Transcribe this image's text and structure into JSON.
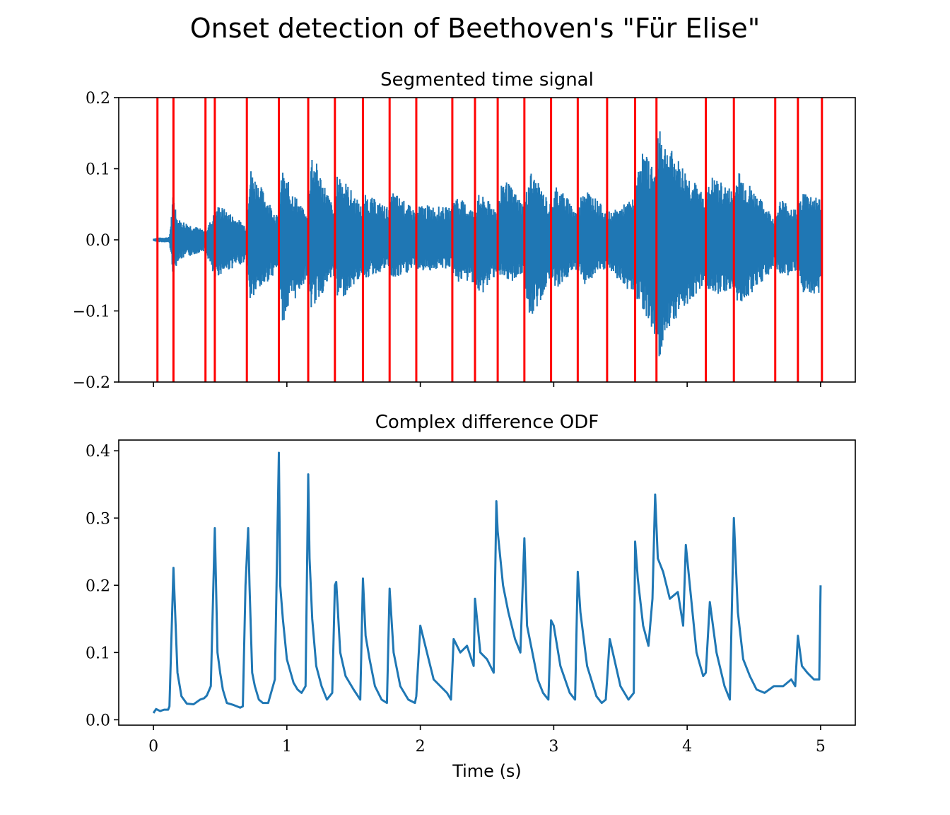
{
  "title": "Onset detection of Beethoven's \"Für Elise\"",
  "colors": {
    "signal": "#1f77b4",
    "onset": "#ff0000",
    "axes": "#000000"
  },
  "chart_data": [
    {
      "type": "line",
      "title": "Segmented time signal",
      "xlabel": "",
      "ylabel": "",
      "xlim": [
        -0.26,
        5.26
      ],
      "ylim": [
        -0.2,
        0.2
      ],
      "xticks": [
        0,
        1,
        2,
        3,
        4,
        5
      ],
      "xtick_labels_visible": false,
      "yticks": [
        -0.2,
        -0.1,
        0.0,
        0.1,
        0.2
      ],
      "ytick_labels": [
        "−0.2",
        "−0.1",
        "0.0",
        "0.1",
        "0.2"
      ],
      "grid": false,
      "onsets": [
        0.03,
        0.15,
        0.39,
        0.46,
        0.7,
        0.94,
        1.16,
        1.36,
        1.57,
        1.77,
        1.97,
        2.24,
        2.41,
        2.58,
        2.78,
        2.98,
        3.18,
        3.4,
        3.61,
        3.77,
        4.14,
        4.35,
        4.66,
        4.83,
        5.01
      ],
      "envelope": {
        "x": [
          0.0,
          0.03,
          0.12,
          0.15,
          0.18,
          0.39,
          0.46,
          0.49,
          0.7,
          0.72,
          0.94,
          0.96,
          1.16,
          1.18,
          1.36,
          1.38,
          1.57,
          1.59,
          1.77,
          1.79,
          1.97,
          2.0,
          2.24,
          2.26,
          2.41,
          2.44,
          2.58,
          2.62,
          2.78,
          2.82,
          2.98,
          3.02,
          3.18,
          3.22,
          3.4,
          3.44,
          3.61,
          3.65,
          3.77,
          3.79,
          3.83,
          4.14,
          4.18,
          4.35,
          4.38,
          4.66,
          4.7,
          4.83,
          4.86,
          5.0
        ],
        "upper": [
          0.002,
          0.003,
          0.004,
          0.07,
          0.03,
          0.013,
          0.04,
          0.05,
          0.02,
          0.105,
          0.03,
          0.1,
          0.03,
          0.13,
          0.04,
          0.1,
          0.045,
          0.065,
          0.045,
          0.07,
          0.04,
          0.05,
          0.045,
          0.065,
          0.04,
          0.065,
          0.045,
          0.09,
          0.05,
          0.1,
          0.05,
          0.08,
          0.04,
          0.08,
          0.04,
          0.04,
          0.06,
          0.13,
          0.1,
          0.18,
          0.14,
          0.06,
          0.09,
          0.07,
          0.1,
          0.03,
          0.06,
          0.04,
          0.07,
          0.06
        ],
        "lower": [
          -0.002,
          -0.003,
          -0.004,
          -0.055,
          -0.03,
          -0.015,
          -0.06,
          -0.05,
          -0.03,
          -0.09,
          -0.04,
          -0.12,
          -0.05,
          -0.1,
          -0.05,
          -0.09,
          -0.05,
          -0.055,
          -0.04,
          -0.06,
          -0.04,
          -0.045,
          -0.04,
          -0.06,
          -0.06,
          -0.085,
          -0.045,
          -0.065,
          -0.05,
          -0.125,
          -0.05,
          -0.07,
          -0.04,
          -0.065,
          -0.04,
          -0.05,
          -0.08,
          -0.09,
          -0.14,
          -0.185,
          -0.13,
          -0.06,
          -0.08,
          -0.07,
          -0.095,
          -0.04,
          -0.05,
          -0.05,
          -0.08,
          -0.075
        ]
      }
    },
    {
      "type": "line",
      "title": "Complex difference ODF",
      "xlabel": "Time (s)",
      "ylabel": "",
      "xlim": [
        -0.26,
        5.26
      ],
      "ylim": [
        -0.008,
        0.416
      ],
      "xticks": [
        0,
        1,
        2,
        3,
        4,
        5
      ],
      "xtick_labels": [
        "0",
        "1",
        "2",
        "3",
        "4",
        "5"
      ],
      "yticks": [
        0.0,
        0.1,
        0.2,
        0.3,
        0.4
      ],
      "ytick_labels": [
        "0.0",
        "0.1",
        "0.2",
        "0.3",
        "0.4"
      ],
      "grid": false,
      "series": [
        {
          "x": [
            0.0,
            0.02,
            0.05,
            0.08,
            0.11,
            0.12,
            0.15,
            0.18,
            0.21,
            0.25,
            0.3,
            0.35,
            0.38,
            0.4,
            0.43,
            0.46,
            0.48,
            0.5,
            0.52,
            0.55,
            0.6,
            0.65,
            0.67,
            0.69,
            0.71,
            0.72,
            0.74,
            0.76,
            0.79,
            0.82,
            0.86,
            0.91,
            0.94,
            0.95,
            0.97,
            1.0,
            1.05,
            1.08,
            1.11,
            1.14,
            1.16,
            1.17,
            1.19,
            1.22,
            1.26,
            1.3,
            1.34,
            1.36,
            1.37,
            1.4,
            1.44,
            1.5,
            1.55,
            1.57,
            1.59,
            1.62,
            1.66,
            1.71,
            1.75,
            1.77,
            1.8,
            1.85,
            1.91,
            1.96,
            1.97,
            2.0,
            2.05,
            2.1,
            2.15,
            2.2,
            2.23,
            2.25,
            2.3,
            2.35,
            2.4,
            2.41,
            2.45,
            2.5,
            2.55,
            2.57,
            2.58,
            2.62,
            2.66,
            2.71,
            2.75,
            2.78,
            2.8,
            2.84,
            2.88,
            2.92,
            2.96,
            2.98,
            3.0,
            3.05,
            3.12,
            3.16,
            3.18,
            3.2,
            3.25,
            3.32,
            3.36,
            3.39,
            3.42,
            3.5,
            3.56,
            3.6,
            3.61,
            3.63,
            3.67,
            3.71,
            3.74,
            3.76,
            3.78,
            3.82,
            3.87,
            3.93,
            3.97,
            3.99,
            4.02,
            4.07,
            4.12,
            4.14,
            4.17,
            4.22,
            4.28,
            4.32,
            4.35,
            4.38,
            4.42,
            4.47,
            4.52,
            4.58,
            4.65,
            4.72,
            4.78,
            4.81,
            4.83,
            4.86,
            4.9,
            4.95,
            4.99,
            5.0
          ],
          "values": [
            0.01,
            0.016,
            0.013,
            0.015,
            0.015,
            0.02,
            0.226,
            0.07,
            0.035,
            0.024,
            0.023,
            0.03,
            0.032,
            0.036,
            0.05,
            0.285,
            0.1,
            0.07,
            0.045,
            0.025,
            0.022,
            0.018,
            0.02,
            0.2,
            0.285,
            0.2,
            0.07,
            0.05,
            0.03,
            0.025,
            0.025,
            0.06,
            0.397,
            0.2,
            0.15,
            0.09,
            0.055,
            0.045,
            0.04,
            0.05,
            0.365,
            0.24,
            0.15,
            0.08,
            0.05,
            0.03,
            0.04,
            0.2,
            0.205,
            0.1,
            0.065,
            0.045,
            0.03,
            0.21,
            0.125,
            0.09,
            0.05,
            0.03,
            0.025,
            0.195,
            0.1,
            0.05,
            0.03,
            0.025,
            0.035,
            0.14,
            0.1,
            0.06,
            0.05,
            0.04,
            0.03,
            0.12,
            0.1,
            0.11,
            0.08,
            0.18,
            0.1,
            0.09,
            0.07,
            0.325,
            0.28,
            0.2,
            0.16,
            0.12,
            0.1,
            0.27,
            0.14,
            0.1,
            0.06,
            0.04,
            0.03,
            0.148,
            0.14,
            0.08,
            0.04,
            0.03,
            0.22,
            0.16,
            0.08,
            0.035,
            0.025,
            0.03,
            0.12,
            0.05,
            0.03,
            0.04,
            0.265,
            0.21,
            0.14,
            0.11,
            0.18,
            0.335,
            0.24,
            0.22,
            0.18,
            0.19,
            0.14,
            0.26,
            0.2,
            0.1,
            0.065,
            0.07,
            0.175,
            0.1,
            0.05,
            0.03,
            0.3,
            0.16,
            0.09,
            0.065,
            0.045,
            0.04,
            0.05,
            0.05,
            0.06,
            0.05,
            0.125,
            0.08,
            0.07,
            0.06,
            0.06,
            0.2
          ]
        }
      ]
    }
  ]
}
